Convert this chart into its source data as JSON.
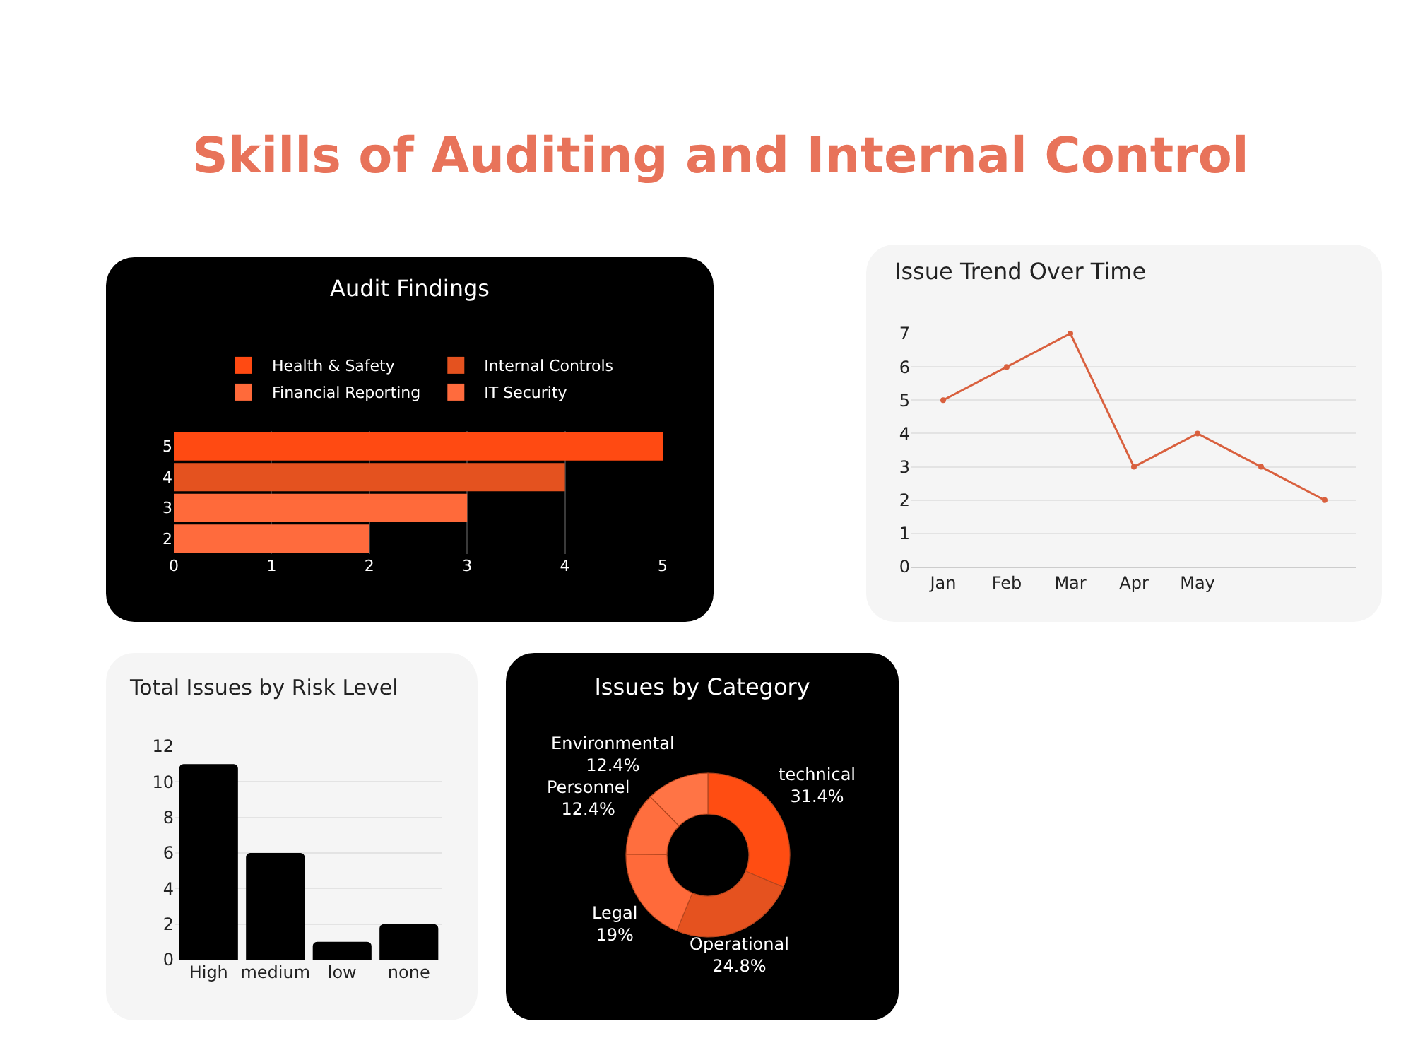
{
  "chart_data": [
    {
      "type": "other",
      "title": "Skills of Auditing and Internal Control"
    },
    {
      "type": "bar",
      "title": "Audit Findings",
      "orientation": "horizontal",
      "categories": [
        "5",
        "4",
        "3",
        "2"
      ],
      "series": [
        {
          "name": "Health & Safety",
          "color": "#ff4a12",
          "values": [
            5,
            null,
            null,
            null
          ]
        },
        {
          "name": "Internal Controls",
          "color": "#e4521f",
          "values": [
            null,
            4,
            null,
            null
          ]
        },
        {
          "name": "Financial Reporting",
          "color": "#ff6a3a",
          "values": [
            null,
            null,
            3,
            null
          ]
        },
        {
          "name": "IT Security",
          "color": "#ff6b3d",
          "values": [
            null,
            null,
            null,
            2
          ]
        }
      ],
      "xlim": [
        0,
        5
      ],
      "xticks": [
        0,
        1,
        2,
        3,
        4,
        5
      ],
      "grid": "x",
      "legend": "top"
    },
    {
      "type": "line",
      "title": "Issue Trend Over Time",
      "categories": [
        "Jan",
        "Feb",
        "Mar",
        "Apr",
        "May",
        null,
        null
      ],
      "values": [
        5,
        6,
        7,
        3,
        4,
        3,
        2
      ],
      "color": "#d9603e",
      "ylim": [
        0,
        7
      ],
      "yticks": [
        0,
        1,
        2,
        3,
        4,
        5,
        6,
        7
      ],
      "grid": "y",
      "marker": "circle",
      "line_style": "solid"
    },
    {
      "type": "bar",
      "title": "Total Issues by Risk Level",
      "categories": [
        "High",
        "medium",
        "low",
        "none"
      ],
      "values": [
        11,
        6,
        1,
        2
      ],
      "color": "#000000",
      "ylim": [
        0,
        12
      ],
      "yticks": [
        0,
        2,
        4,
        6,
        8,
        10,
        12
      ],
      "grid": "y"
    },
    {
      "type": "donut",
      "title": "Issues by Category",
      "categories": [
        "technical",
        "Operational",
        "Legal",
        "Personnel",
        "Environmental"
      ],
      "values": [
        31.4,
        24.8,
        19,
        12.4,
        12.4
      ],
      "colors": [
        "#ff4d12",
        "#e5521f",
        "#ff6a3a",
        "#ff6e3e",
        "#ff7445"
      ],
      "value_labels": [
        "31.4%",
        "24.8%",
        "19%",
        "12.4%",
        "12.4%"
      ]
    }
  ]
}
